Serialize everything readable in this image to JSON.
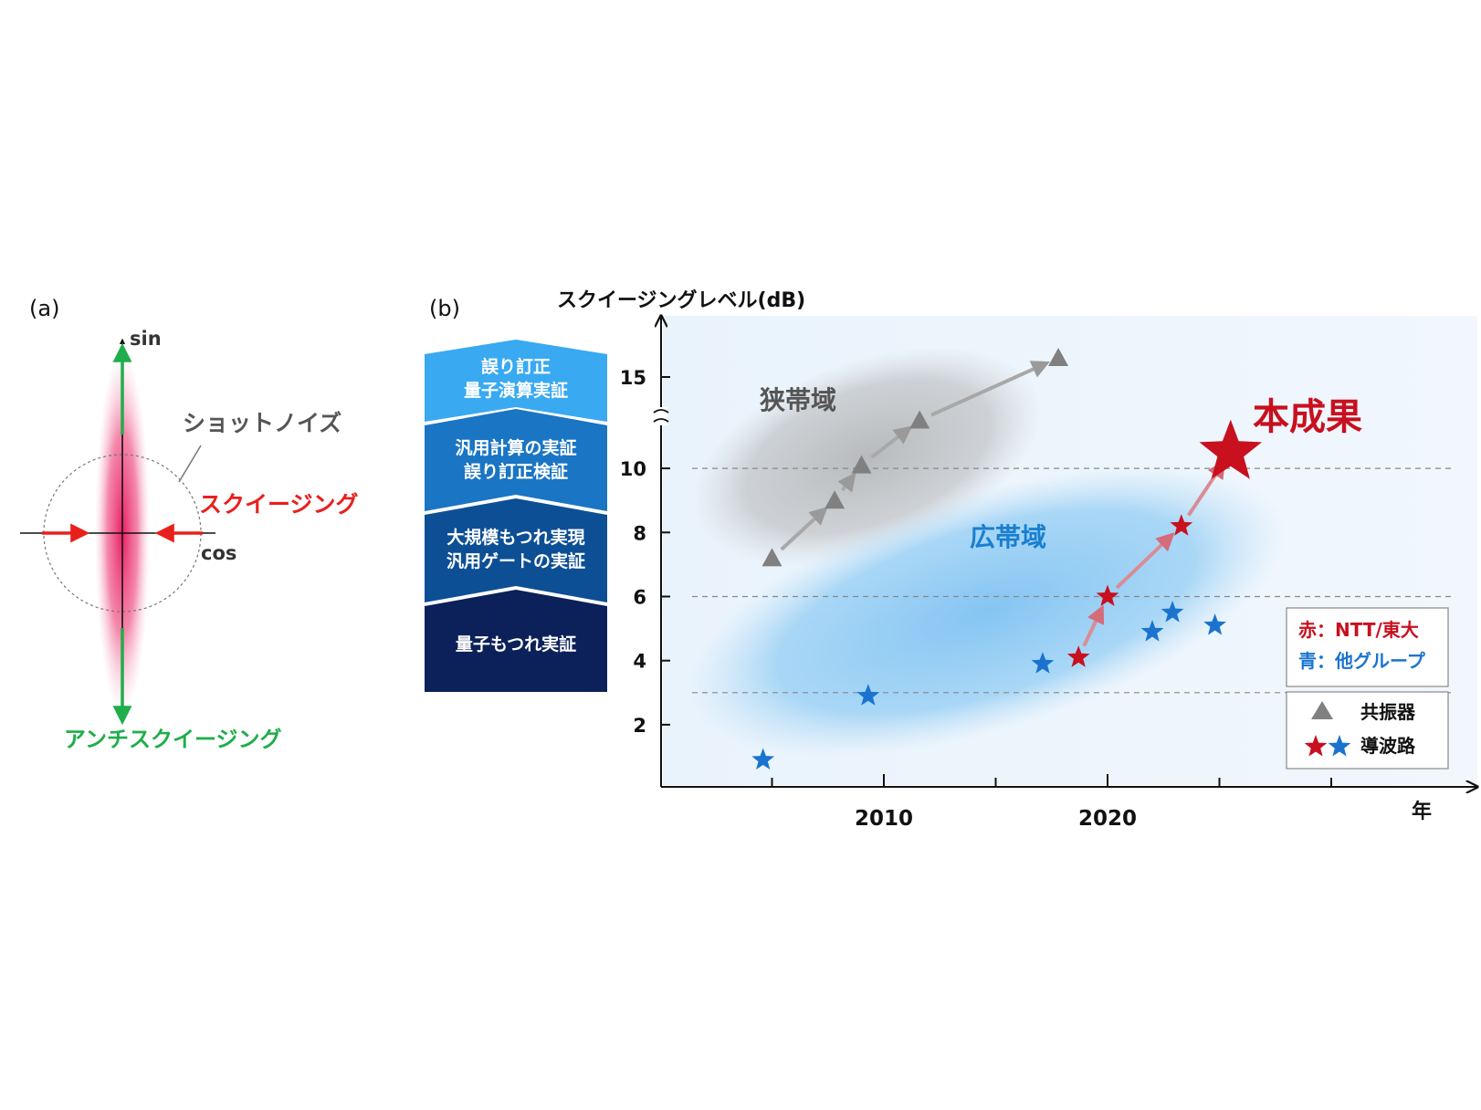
{
  "panel_a": {
    "label": "(a)",
    "axis_sin": "sin",
    "axis_cos": "cos",
    "shot_noise_label": "ショットノイズ",
    "squeezing_label": "スクイージング",
    "anti_squeezing_label": "アンチスクイージング",
    "colors": {
      "squeeze": "#e8201c",
      "anti": "#1fae4b",
      "noise": "#e91e63"
    }
  },
  "panel_b": {
    "label": "(b)",
    "stages": [
      {
        "line1": "誤り訂正",
        "line2": "量子演算実証",
        "color": "#39a9f2"
      },
      {
        "line1": "汎用計算の実証",
        "line2": "誤り訂正検証",
        "color": "#1a75c4"
      },
      {
        "line1": "大規模もつれ実現",
        "line2": "汎用ゲートの実証",
        "color": "#0d4f95"
      },
      {
        "line1": "量子もつれ実証",
        "line2": "",
        "color": "#0c2159"
      }
    ]
  },
  "chart_data": {
    "type": "scatter",
    "title": "",
    "ylabel": "スクイージングレベル(dB)",
    "xlabel": "年",
    "y_ticks": [
      2,
      4,
      6,
      8,
      10,
      15
    ],
    "y_axis_break": "between 10 and 15",
    "x_tick_labels": [
      "2010",
      "2020"
    ],
    "dashed_lines_y": [
      3,
      6,
      10
    ],
    "regions": [
      {
        "label": "狭帯域",
        "color": "#8a8a8a"
      },
      {
        "label": "広帯域",
        "color": "#1a7fd0"
      }
    ],
    "series": [
      {
        "name": "共振器",
        "marker": "triangle",
        "color": "#808080",
        "points": [
          [
            2005.0,
            7.2
          ],
          [
            2007.8,
            9.0
          ],
          [
            2009.0,
            10.1
          ],
          [
            2011.6,
            11.5
          ],
          [
            2017.8,
            15.6
          ]
        ]
      },
      {
        "name": "導波路",
        "group": "NTT/東大",
        "marker": "star",
        "color": "#c8101e",
        "points": [
          [
            2018.7,
            4.1
          ],
          [
            2020.0,
            6.0
          ],
          [
            2023.3,
            8.2
          ]
        ]
      },
      {
        "name": "導波路",
        "group": "他グループ",
        "marker": "star",
        "color": "#1a74cf",
        "points": [
          [
            2004.6,
            0.9
          ],
          [
            2009.3,
            2.9
          ],
          [
            2017.1,
            3.9
          ],
          [
            2022.0,
            4.9
          ],
          [
            2022.9,
            5.5
          ],
          [
            2024.8,
            5.1
          ]
        ]
      }
    ],
    "highlight": {
      "label": "本成果",
      "x": 2025.5,
      "y": 10.5,
      "color": "#c8101e"
    },
    "legend_groups": {
      "red": "赤：NTT/東大",
      "blue": "青：他グループ"
    },
    "legend_markers": {
      "triangle": "共振器",
      "star": "導波路"
    }
  }
}
